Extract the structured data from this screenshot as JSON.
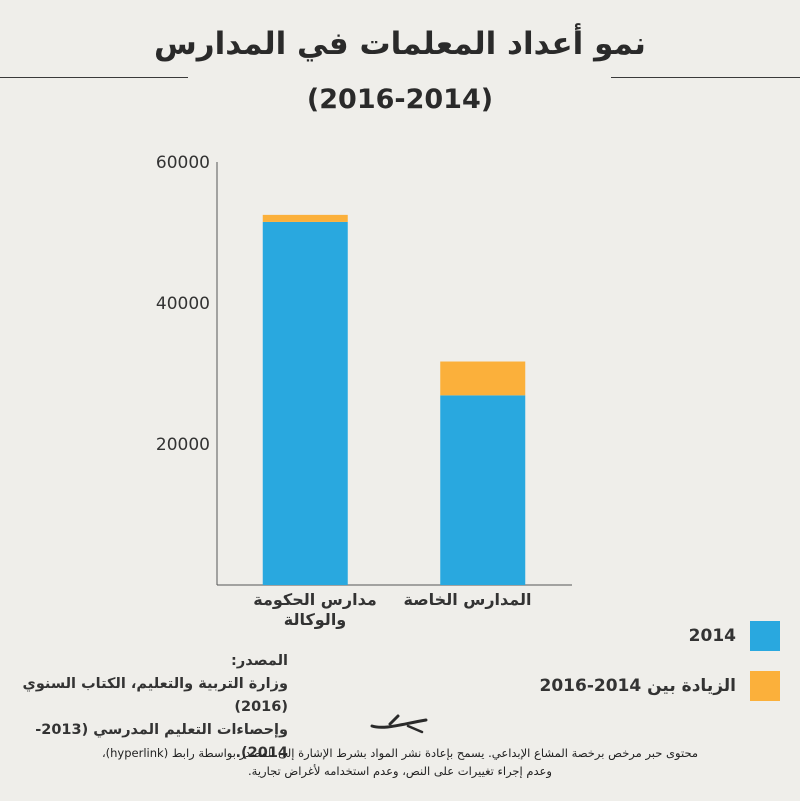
{
  "header": {
    "title": "نمو أعداد المعلمات في المدارس",
    "subtitle": "(2016-2014)"
  },
  "chart_data": {
    "type": "bar",
    "stacked": true,
    "categories": [
      "مدارس الحكومة والوكالة",
      "المدارس الخاصة"
    ],
    "series": [
      {
        "name": "2014",
        "color": "#29a8df",
        "values": [
          51500,
          26900
        ]
      },
      {
        "name": "الزيادة بين 2014-2016",
        "color": "#fbb03b",
        "values": [
          1000,
          4800
        ]
      }
    ],
    "ylim": [
      0,
      60000
    ],
    "yticks": [
      20000,
      40000,
      60000
    ],
    "grid": false,
    "legend": "bottom-right"
  },
  "categories_display": {
    "cat1_line1": "مدارس الحكومة",
    "cat1_line2": "والوكالة",
    "cat2_line1": "المدارس الخاصة"
  },
  "source": {
    "label": "المصدر:",
    "line1": "وزارة التربية والتعليم، الكتاب السنوي (2016)",
    "line2": "وإحصاءات التعليم المدرسي (2013-2014)."
  },
  "footer": {
    "line1": "محتوى حبر مرخص برخصة المشاع الإبداعي. يسمح بإعادة نشر المواد بشرط الإشارة إلى المصدر بواسطة رابط (hyperlink)،",
    "line2": "وعدم إجراء تغييرات على النص، وعدم استخدامه لأغراض تجارية."
  },
  "logo": {
    "icon": "hibr-pen-logo-icon"
  }
}
